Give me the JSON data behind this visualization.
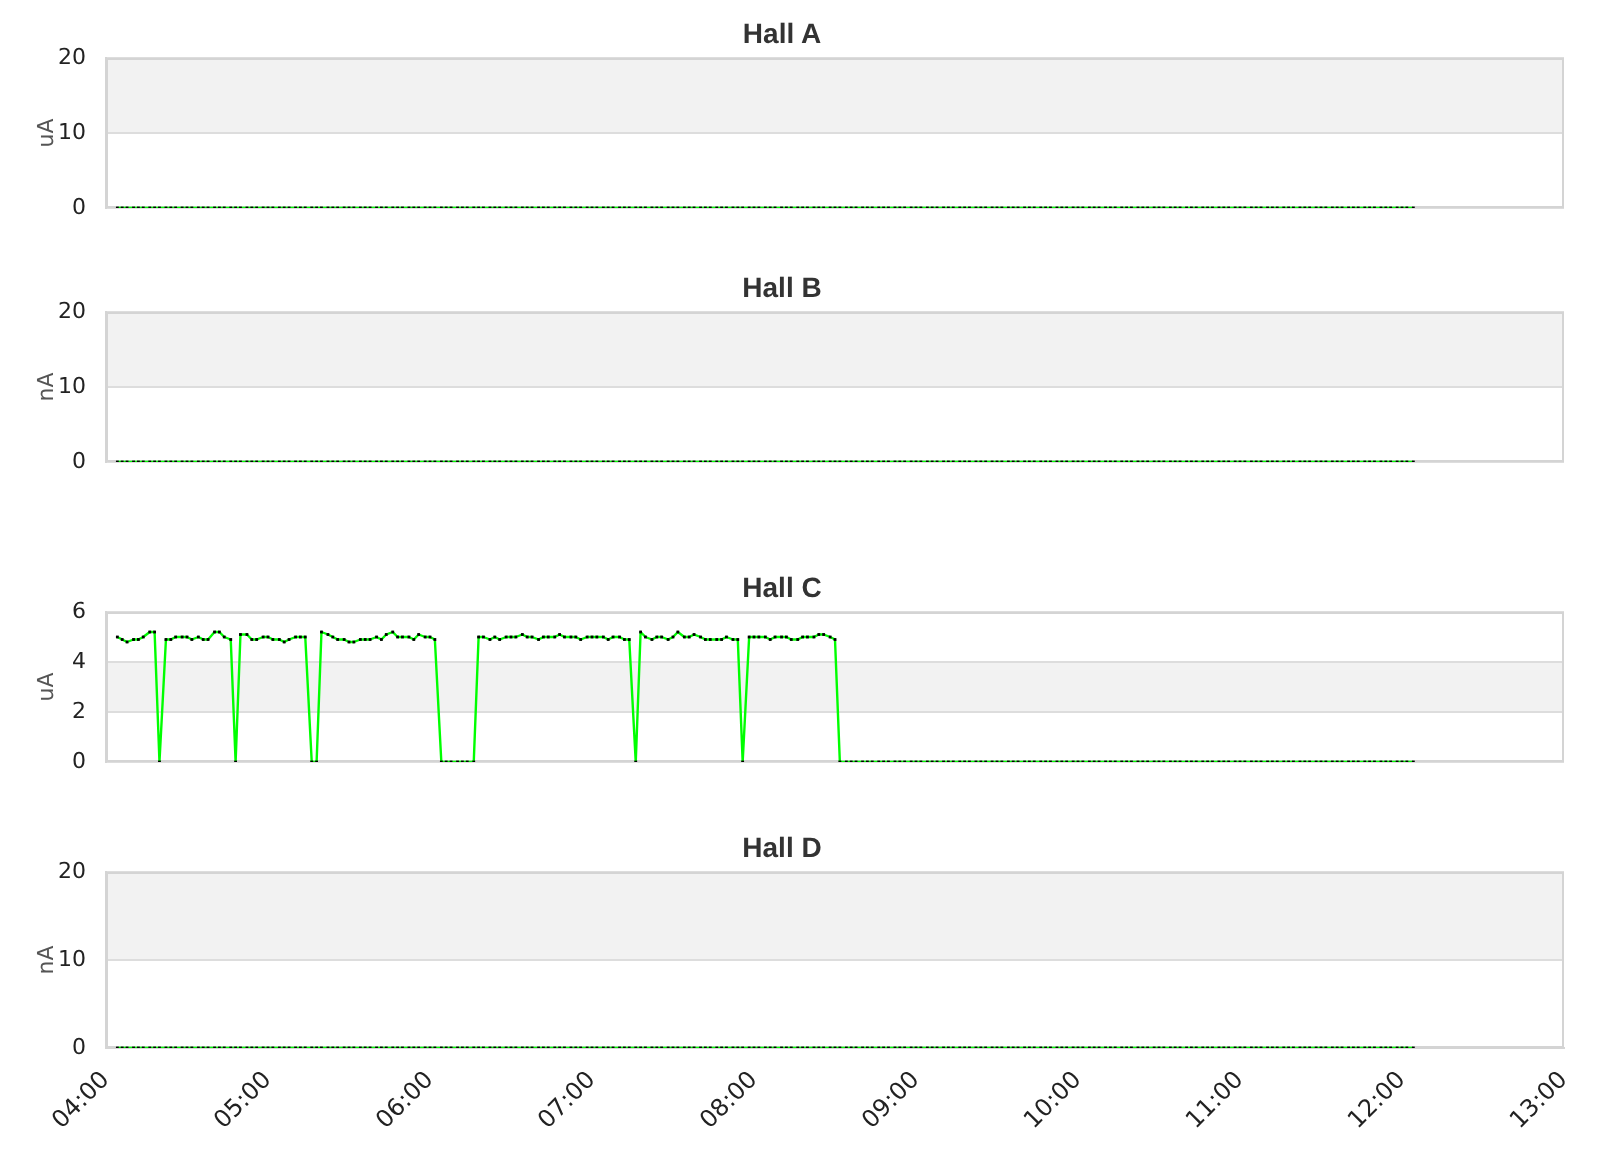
{
  "chart_data": [
    {
      "type": "line",
      "title": "Hall A",
      "ylabel": "uA",
      "x": [
        4.07,
        4.1,
        4.13,
        4.17,
        4.2,
        4.23,
        4.27,
        4.3,
        4.33,
        4.37,
        4.4,
        4.43,
        4.47,
        4.5,
        4.53,
        4.57,
        4.6,
        4.63,
        4.67,
        4.7,
        4.73,
        4.77,
        4.8,
        4.83,
        4.87,
        4.9,
        4.93,
        4.97,
        5,
        5.03,
        5.07,
        5.1,
        5.13,
        5.17,
        5.2,
        5.23,
        5.27,
        5.3,
        5.33,
        5.37,
        5.4,
        5.43,
        5.47,
        5.5,
        5.53,
        5.57,
        5.6,
        5.63,
        5.67,
        5.7,
        5.73,
        5.77,
        5.8,
        5.83,
        5.87,
        5.9,
        5.93,
        5.97,
        6,
        6.03,
        6.07,
        6.1,
        6.13,
        6.17,
        6.2,
        6.23,
        6.27,
        6.3,
        6.33,
        6.37,
        6.4,
        6.43,
        6.47,
        6.5,
        6.53,
        6.57,
        6.6,
        6.63,
        6.67,
        6.7,
        6.73,
        6.77,
        6.8,
        6.83,
        6.87,
        6.9,
        6.93,
        6.97,
        7,
        7.03,
        7.07,
        7.1,
        7.13,
        7.17,
        7.2,
        7.23,
        7.27,
        7.3,
        7.33,
        7.37,
        7.4,
        7.43,
        7.47,
        7.5,
        7.53,
        7.57,
        7.6,
        7.63,
        7.67,
        7.7,
        7.73,
        7.77,
        7.8,
        7.83,
        7.87,
        7.9,
        7.93,
        7.97,
        8,
        8.03,
        8.07,
        8.1,
        8.13,
        8.17,
        8.2,
        8.23,
        8.27,
        8.3,
        8.33,
        8.37,
        8.4,
        8.43,
        8.47,
        8.5,
        8.53,
        8.57,
        8.6,
        8.63,
        8.67,
        8.7,
        8.73,
        8.77,
        8.8,
        8.83,
        8.87,
        8.9,
        8.93,
        8.97,
        9,
        9.03,
        9.07,
        9.1,
        9.13,
        9.17,
        9.2,
        9.23,
        9.27,
        9.3,
        9.33,
        9.37,
        9.4,
        9.43,
        9.47,
        9.5,
        9.53,
        9.57,
        9.6,
        9.63,
        9.67,
        9.7,
        9.73,
        9.77,
        9.8,
        9.83,
        9.87,
        9.9,
        9.93,
        9.97,
        10,
        10.03,
        10.07,
        10.1,
        10.13,
        10.17,
        10.2,
        10.23,
        10.27,
        10.3,
        10.33,
        10.37,
        10.4,
        10.43,
        10.47,
        10.5,
        10.53,
        10.57,
        10.6,
        10.63,
        10.67,
        10.7,
        10.73,
        10.77,
        10.8,
        10.83,
        10.87,
        10.9,
        10.93,
        10.97,
        11,
        11.03,
        11.07,
        11.1,
        11.13,
        11.17,
        11.2,
        11.23,
        11.27,
        11.3,
        11.33,
        11.37,
        11.4,
        11.43,
        11.47,
        11.5,
        11.53,
        11.57,
        11.6,
        11.63,
        11.67,
        11.7,
        11.73,
        11.77,
        11.8,
        11.83,
        11.87,
        11.9,
        11.93,
        11.97,
        12,
        12.03,
        12.07
      ],
      "series": [
        {
          "color": "#00ff00",
          "values": [
            0,
            0,
            0,
            0,
            0,
            0,
            0,
            0,
            0,
            0,
            0,
            0,
            0,
            0,
            0,
            0,
            0,
            0,
            0,
            0,
            0,
            0,
            0,
            0,
            0,
            0,
            0,
            0,
            0,
            0,
            0,
            0,
            0,
            0,
            0,
            0,
            0,
            0,
            0,
            0,
            0,
            0,
            0,
            0,
            0,
            0,
            0,
            0,
            0,
            0,
            0,
            0,
            0,
            0,
            0,
            0,
            0,
            0,
            0,
            0,
            0,
            0,
            0,
            0,
            0,
            0,
            0,
            0,
            0,
            0,
            0,
            0,
            0,
            0,
            0,
            0,
            0,
            0,
            0,
            0,
            0,
            0,
            0,
            0,
            0,
            0,
            0,
            0,
            0,
            0,
            0,
            0,
            0,
            0,
            0,
            0,
            0,
            0,
            0,
            0,
            0,
            0,
            0,
            0,
            0,
            0,
            0,
            0,
            0,
            0,
            0,
            0,
            0,
            0,
            0,
            0,
            0,
            0,
            0,
            0,
            0,
            0,
            0,
            0,
            0,
            0,
            0,
            0,
            0,
            0,
            0,
            0,
            0,
            0,
            0,
            0,
            0,
            0,
            0,
            0,
            0,
            0,
            0,
            0,
            0,
            0,
            0,
            0,
            0,
            0,
            0,
            0,
            0,
            0,
            0,
            0,
            0,
            0,
            0,
            0,
            0,
            0,
            0,
            0,
            0,
            0,
            0,
            0,
            0,
            0,
            0,
            0,
            0,
            0,
            0,
            0,
            0,
            0,
            0,
            0,
            0,
            0,
            0,
            0,
            0,
            0,
            0,
            0,
            0,
            0,
            0,
            0,
            0,
            0,
            0,
            0,
            0,
            0,
            0,
            0,
            0,
            0,
            0,
            0,
            0,
            0,
            0,
            0,
            0,
            0,
            0,
            0,
            0,
            0,
            0,
            0,
            0,
            0,
            0,
            0,
            0,
            0,
            0,
            0,
            0,
            0,
            0,
            0,
            0,
            0,
            0,
            0,
            0,
            0,
            0,
            0,
            0,
            0,
            0,
            0,
            0
          ]
        }
      ],
      "xlim": [
        4,
        13
      ],
      "ylim": [
        0,
        20
      ],
      "yticks": [
        0,
        10,
        20
      ],
      "grid": "y",
      "marker": "square",
      "bands": [
        {
          "axis": "y",
          "from": 10,
          "to": 20,
          "color": "#f2f2f2"
        }
      ],
      "tick_labels": "y"
    },
    {
      "type": "line",
      "title": "Hall B",
      "ylabel": "nA",
      "x": [
        4.07,
        4.1,
        4.13,
        4.17,
        4.2,
        4.23,
        4.27,
        4.3,
        4.33,
        4.37,
        4.4,
        4.43,
        4.47,
        4.5,
        4.53,
        4.57,
        4.6,
        4.63,
        4.67,
        4.7,
        4.73,
        4.77,
        4.8,
        4.83,
        4.87,
        4.9,
        4.93,
        4.97,
        5,
        5.03,
        5.07,
        5.1,
        5.13,
        5.17,
        5.2,
        5.23,
        5.27,
        5.3,
        5.33,
        5.37,
        5.4,
        5.43,
        5.47,
        5.5,
        5.53,
        5.57,
        5.6,
        5.63,
        5.67,
        5.7,
        5.73,
        5.77,
        5.8,
        5.83,
        5.87,
        5.9,
        5.93,
        5.97,
        6,
        6.03,
        6.07,
        6.1,
        6.13,
        6.17,
        6.2,
        6.23,
        6.27,
        6.3,
        6.33,
        6.37,
        6.4,
        6.43,
        6.47,
        6.5,
        6.53,
        6.57,
        6.6,
        6.63,
        6.67,
        6.7,
        6.73,
        6.77,
        6.8,
        6.83,
        6.87,
        6.9,
        6.93,
        6.97,
        7,
        7.03,
        7.07,
        7.1,
        7.13,
        7.17,
        7.2,
        7.23,
        7.27,
        7.3,
        7.33,
        7.37,
        7.4,
        7.43,
        7.47,
        7.5,
        7.53,
        7.57,
        7.6,
        7.63,
        7.67,
        7.7,
        7.73,
        7.77,
        7.8,
        7.83,
        7.87,
        7.9,
        7.93,
        7.97,
        8,
        8.03,
        8.07,
        8.1,
        8.13,
        8.17,
        8.2,
        8.23,
        8.27,
        8.3,
        8.33,
        8.37,
        8.4,
        8.43,
        8.47,
        8.5,
        8.53,
        8.57,
        8.6,
        8.63,
        8.67,
        8.7,
        8.73,
        8.77,
        8.8,
        8.83,
        8.87,
        8.9,
        8.93,
        8.97,
        9,
        9.03,
        9.07,
        9.1,
        9.13,
        9.17,
        9.2,
        9.23,
        9.27,
        9.3,
        9.33,
        9.37,
        9.4,
        9.43,
        9.47,
        9.5,
        9.53,
        9.57,
        9.6,
        9.63,
        9.67,
        9.7,
        9.73,
        9.77,
        9.8,
        9.83,
        9.87,
        9.9,
        9.93,
        9.97,
        10,
        10.03,
        10.07,
        10.1,
        10.13,
        10.17,
        10.2,
        10.23,
        10.27,
        10.3,
        10.33,
        10.37,
        10.4,
        10.43,
        10.47,
        10.5,
        10.53,
        10.57,
        10.6,
        10.63,
        10.67,
        10.7,
        10.73,
        10.77,
        10.8,
        10.83,
        10.87,
        10.9,
        10.93,
        10.97,
        11,
        11.03,
        11.07,
        11.1,
        11.13,
        11.17,
        11.2,
        11.23,
        11.27,
        11.3,
        11.33,
        11.37,
        11.4,
        11.43,
        11.47,
        11.5,
        11.53,
        11.57,
        11.6,
        11.63,
        11.67,
        11.7,
        11.73,
        11.77,
        11.8,
        11.83,
        11.87,
        11.9,
        11.93,
        11.97,
        12,
        12.03,
        12.07
      ],
      "series": [
        {
          "color": "#00ff00",
          "values": [
            0,
            0,
            0,
            0,
            0,
            0,
            0,
            0,
            0,
            0,
            0,
            0,
            0,
            0,
            0,
            0,
            0,
            0,
            0,
            0,
            0,
            0,
            0,
            0,
            0,
            0,
            0,
            0,
            0,
            0,
            0,
            0,
            0,
            0,
            0,
            0,
            0,
            0,
            0,
            0,
            0,
            0,
            0,
            0,
            0,
            0,
            0,
            0,
            0,
            0,
            0,
            0,
            0,
            0,
            0,
            0,
            0,
            0,
            0,
            0,
            0,
            0,
            0,
            0,
            0,
            0,
            0,
            0,
            0,
            0,
            0,
            0,
            0,
            0,
            0,
            0,
            0,
            0,
            0,
            0,
            0,
            0,
            0,
            0,
            0,
            0,
            0,
            0,
            0,
            0,
            0,
            0,
            0,
            0,
            0,
            0,
            0,
            0,
            0,
            0,
            0,
            0,
            0,
            0,
            0,
            0,
            0,
            0,
            0,
            0,
            0,
            0,
            0,
            0,
            0,
            0,
            0,
            0,
            0,
            0,
            0,
            0,
            0,
            0,
            0,
            0,
            0,
            0,
            0,
            0,
            0,
            0,
            0,
            0,
            0,
            0,
            0,
            0,
            0,
            0,
            0,
            0,
            0,
            0,
            0,
            0,
            0,
            0,
            0,
            0,
            0,
            0,
            0,
            0,
            0,
            0,
            0,
            0,
            0,
            0,
            0,
            0,
            0,
            0,
            0,
            0,
            0,
            0,
            0,
            0,
            0,
            0,
            0,
            0,
            0,
            0,
            0,
            0,
            0,
            0,
            0,
            0,
            0,
            0,
            0,
            0,
            0,
            0,
            0,
            0,
            0,
            0,
            0,
            0,
            0,
            0,
            0,
            0,
            0,
            0,
            0,
            0,
            0,
            0,
            0,
            0,
            0,
            0,
            0,
            0,
            0,
            0,
            0,
            0,
            0,
            0,
            0,
            0,
            0,
            0,
            0,
            0,
            0,
            0,
            0,
            0,
            0,
            0,
            0,
            0,
            0,
            0,
            0,
            0,
            0,
            0,
            0,
            0,
            0,
            0,
            0
          ]
        }
      ],
      "xlim": [
        4,
        13
      ],
      "ylim": [
        0,
        20
      ],
      "yticks": [
        0,
        10,
        20
      ],
      "grid": "y",
      "marker": "square",
      "bands": [
        {
          "axis": "y",
          "from": 10,
          "to": 20,
          "color": "#f2f2f2"
        }
      ],
      "tick_labels": "y"
    },
    {
      "type": "line",
      "title": "Hall C",
      "ylabel": "uA",
      "x": [
        4.07,
        4.1,
        4.13,
        4.17,
        4.2,
        4.23,
        4.27,
        4.3,
        4.33,
        4.37,
        4.4,
        4.43,
        4.47,
        4.5,
        4.53,
        4.57,
        4.6,
        4.63,
        4.67,
        4.7,
        4.73,
        4.77,
        4.8,
        4.83,
        4.87,
        4.9,
        4.93,
        4.97,
        5,
        5.03,
        5.07,
        5.1,
        5.13,
        5.17,
        5.2,
        5.23,
        5.27,
        5.3,
        5.33,
        5.37,
        5.4,
        5.43,
        5.47,
        5.5,
        5.53,
        5.57,
        5.6,
        5.63,
        5.67,
        5.7,
        5.73,
        5.77,
        5.8,
        5.83,
        5.87,
        5.9,
        5.93,
        5.97,
        6,
        6.03,
        6.07,
        6.1,
        6.13,
        6.17,
        6.2,
        6.23,
        6.27,
        6.3,
        6.33,
        6.37,
        6.4,
        6.43,
        6.47,
        6.5,
        6.53,
        6.57,
        6.6,
        6.63,
        6.67,
        6.7,
        6.73,
        6.77,
        6.8,
        6.83,
        6.87,
        6.9,
        6.93,
        6.97,
        7,
        7.03,
        7.07,
        7.1,
        7.13,
        7.17,
        7.2,
        7.23,
        7.27,
        7.3,
        7.33,
        7.37,
        7.4,
        7.43,
        7.47,
        7.5,
        7.53,
        7.57,
        7.6,
        7.63,
        7.67,
        7.7,
        7.73,
        7.77,
        7.8,
        7.83,
        7.87,
        7.9,
        7.93,
        7.97,
        8,
        8.03,
        8.07,
        8.1,
        8.13,
        8.17,
        8.2,
        8.23,
        8.27,
        8.3,
        8.33,
        8.37,
        8.4,
        8.43,
        8.47,
        8.5,
        8.53,
        8.57,
        8.6,
        8.63,
        8.67,
        8.7,
        8.73,
        8.77,
        8.8,
        8.83,
        8.87,
        8.9,
        8.93,
        8.97,
        9,
        9.03,
        9.07,
        9.1,
        9.13,
        9.17,
        9.2,
        9.23,
        9.27,
        9.3,
        9.33,
        9.37,
        9.4,
        9.43,
        9.47,
        9.5,
        9.53,
        9.57,
        9.6,
        9.63,
        9.67,
        9.7,
        9.73,
        9.77,
        9.8,
        9.83,
        9.87,
        9.9,
        9.93,
        9.97,
        10,
        10.03,
        10.07,
        10.1,
        10.13,
        10.17,
        10.2,
        10.23,
        10.27,
        10.3,
        10.33,
        10.37,
        10.4,
        10.43,
        10.47,
        10.5,
        10.53,
        10.57,
        10.6,
        10.63,
        10.67,
        10.7,
        10.73,
        10.77,
        10.8,
        10.83,
        10.87,
        10.9,
        10.93,
        10.97,
        11,
        11.03,
        11.07,
        11.1,
        11.13,
        11.17,
        11.2,
        11.23,
        11.27,
        11.3,
        11.33,
        11.37,
        11.4,
        11.43,
        11.47,
        11.5,
        11.53,
        11.57,
        11.6,
        11.63,
        11.67,
        11.7,
        11.73,
        11.77,
        11.8,
        11.83,
        11.87,
        11.9,
        11.93,
        11.97,
        12,
        12.03,
        12.07
      ],
      "series": [
        {
          "color": "#00ff00",
          "values": [
            5,
            4.9,
            4.8,
            4.9,
            4.9,
            5,
            5.2,
            5.2,
            0,
            4.9,
            4.9,
            5,
            5,
            5,
            4.9,
            5,
            4.9,
            4.9,
            5.2,
            5.2,
            5,
            4.9,
            0,
            5.1,
            5.1,
            4.9,
            4.9,
            5,
            5,
            4.9,
            4.9,
            4.8,
            4.9,
            5,
            5,
            5,
            0,
            0,
            5.2,
            5.1,
            5,
            4.9,
            4.9,
            4.8,
            4.8,
            4.9,
            4.9,
            4.9,
            5,
            4.9,
            5.1,
            5.2,
            5,
            5,
            5,
            4.9,
            5.1,
            5,
            5,
            4.9,
            0,
            0,
            0,
            0,
            0,
            0,
            0,
            5,
            5,
            4.9,
            5,
            4.9,
            5,
            5,
            5,
            5.1,
            5,
            5,
            4.9,
            5,
            5,
            5,
            5.1,
            5,
            5,
            5,
            4.9,
            5,
            5,
            5,
            5,
            4.9,
            5,
            5,
            4.9,
            4.9,
            0,
            5.2,
            5,
            4.9,
            5,
            5,
            4.9,
            5,
            5.2,
            5,
            5,
            5.1,
            5,
            4.9,
            4.9,
            4.9,
            4.9,
            5,
            4.9,
            4.9,
            0,
            5,
            5,
            5,
            5,
            4.9,
            5,
            5,
            5,
            4.9,
            4.9,
            5,
            5,
            5,
            5.1,
            5.1,
            5,
            4.9,
            0,
            0,
            0,
            0,
            0,
            0,
            0,
            0,
            0,
            0,
            0,
            0,
            0,
            0,
            0,
            0,
            0,
            0,
            0,
            0,
            0,
            0,
            0,
            0,
            0,
            0,
            0,
            0,
            0,
            0,
            0,
            0,
            0,
            0,
            0,
            0,
            0,
            0,
            0,
            0,
            0,
            0,
            0,
            0,
            0,
            0,
            0,
            0,
            0,
            0,
            0,
            0,
            0,
            0,
            0,
            0,
            0,
            0,
            0,
            0,
            0,
            0,
            0,
            0,
            0,
            0,
            0,
            0,
            0,
            0,
            0,
            0,
            0,
            0,
            0,
            0,
            0,
            0,
            0,
            0,
            0,
            0,
            0,
            0,
            0,
            0,
            0,
            0,
            0,
            0,
            0,
            0,
            0,
            0,
            0,
            0,
            0,
            0,
            0,
            0,
            0,
            0,
            0,
            0,
            0,
            0,
            0
          ]
        }
      ],
      "xlim": [
        4,
        13
      ],
      "ylim": [
        0,
        6
      ],
      "yticks": [
        0,
        2,
        4,
        6
      ],
      "grid": "y",
      "marker": "square",
      "bands": [
        {
          "axis": "y",
          "from": 2,
          "to": 4,
          "color": "#f2f2f2"
        }
      ],
      "tick_labels": "y"
    },
    {
      "type": "line",
      "title": "Hall D",
      "ylabel": "nA",
      "x": [
        4.07,
        4.1,
        4.13,
        4.17,
        4.2,
        4.23,
        4.27,
        4.3,
        4.33,
        4.37,
        4.4,
        4.43,
        4.47,
        4.5,
        4.53,
        4.57,
        4.6,
        4.63,
        4.67,
        4.7,
        4.73,
        4.77,
        4.8,
        4.83,
        4.87,
        4.9,
        4.93,
        4.97,
        5,
        5.03,
        5.07,
        5.1,
        5.13,
        5.17,
        5.2,
        5.23,
        5.27,
        5.3,
        5.33,
        5.37,
        5.4,
        5.43,
        5.47,
        5.5,
        5.53,
        5.57,
        5.6,
        5.63,
        5.67,
        5.7,
        5.73,
        5.77,
        5.8,
        5.83,
        5.87,
        5.9,
        5.93,
        5.97,
        6,
        6.03,
        6.07,
        6.1,
        6.13,
        6.17,
        6.2,
        6.23,
        6.27,
        6.3,
        6.33,
        6.37,
        6.4,
        6.43,
        6.47,
        6.5,
        6.53,
        6.57,
        6.6,
        6.63,
        6.67,
        6.7,
        6.73,
        6.77,
        6.8,
        6.83,
        6.87,
        6.9,
        6.93,
        6.97,
        7,
        7.03,
        7.07,
        7.1,
        7.13,
        7.17,
        7.2,
        7.23,
        7.27,
        7.3,
        7.33,
        7.37,
        7.4,
        7.43,
        7.47,
        7.5,
        7.53,
        7.57,
        7.6,
        7.63,
        7.67,
        7.7,
        7.73,
        7.77,
        7.8,
        7.83,
        7.87,
        7.9,
        7.93,
        7.97,
        8,
        8.03,
        8.07,
        8.1,
        8.13,
        8.17,
        8.2,
        8.23,
        8.27,
        8.3,
        8.33,
        8.37,
        8.4,
        8.43,
        8.47,
        8.5,
        8.53,
        8.57,
        8.6,
        8.63,
        8.67,
        8.7,
        8.73,
        8.77,
        8.8,
        8.83,
        8.87,
        8.9,
        8.93,
        8.97,
        9,
        9.03,
        9.07,
        9.1,
        9.13,
        9.17,
        9.2,
        9.23,
        9.27,
        9.3,
        9.33,
        9.37,
        9.4,
        9.43,
        9.47,
        9.5,
        9.53,
        9.57,
        9.6,
        9.63,
        9.67,
        9.7,
        9.73,
        9.77,
        9.8,
        9.83,
        9.87,
        9.9,
        9.93,
        9.97,
        10,
        10.03,
        10.07,
        10.1,
        10.13,
        10.17,
        10.2,
        10.23,
        10.27,
        10.3,
        10.33,
        10.37,
        10.4,
        10.43,
        10.47,
        10.5,
        10.53,
        10.57,
        10.6,
        10.63,
        10.67,
        10.7,
        10.73,
        10.77,
        10.8,
        10.83,
        10.87,
        10.9,
        10.93,
        10.97,
        11,
        11.03,
        11.07,
        11.1,
        11.13,
        11.17,
        11.2,
        11.23,
        11.27,
        11.3,
        11.33,
        11.37,
        11.4,
        11.43,
        11.47,
        11.5,
        11.53,
        11.57,
        11.6,
        11.63,
        11.67,
        11.7,
        11.73,
        11.77,
        11.8,
        11.83,
        11.87,
        11.9,
        11.93,
        11.97,
        12,
        12.03,
        12.07
      ],
      "series": [
        {
          "color": "#00ff00",
          "values": [
            0,
            0,
            0,
            0,
            0,
            0,
            0,
            0,
            0,
            0,
            0,
            0,
            0,
            0,
            0,
            0,
            0,
            0,
            0,
            0,
            0,
            0,
            0,
            0,
            0,
            0,
            0,
            0,
            0,
            0,
            0,
            0,
            0,
            0,
            0,
            0,
            0,
            0,
            0,
            0,
            0,
            0,
            0,
            0,
            0,
            0,
            0,
            0,
            0,
            0,
            0,
            0,
            0,
            0,
            0,
            0,
            0,
            0,
            0,
            0,
            0,
            0,
            0,
            0,
            0,
            0,
            0,
            0,
            0,
            0,
            0,
            0,
            0,
            0,
            0,
            0,
            0,
            0,
            0,
            0,
            0,
            0,
            0,
            0,
            0,
            0,
            0,
            0,
            0,
            0,
            0,
            0,
            0,
            0,
            0,
            0,
            0,
            0,
            0,
            0,
            0,
            0,
            0,
            0,
            0,
            0,
            0,
            0,
            0,
            0,
            0,
            0,
            0,
            0,
            0,
            0,
            0,
            0,
            0,
            0,
            0,
            0,
            0,
            0,
            0,
            0,
            0,
            0,
            0,
            0,
            0,
            0,
            0,
            0,
            0,
            0,
            0,
            0,
            0,
            0,
            0,
            0,
            0,
            0,
            0,
            0,
            0,
            0,
            0,
            0,
            0,
            0,
            0,
            0,
            0,
            0,
            0,
            0,
            0,
            0,
            0,
            0,
            0,
            0,
            0,
            0,
            0,
            0,
            0,
            0,
            0,
            0,
            0,
            0,
            0,
            0,
            0,
            0,
            0,
            0,
            0,
            0,
            0,
            0,
            0,
            0,
            0,
            0,
            0,
            0,
            0,
            0,
            0,
            0,
            0,
            0,
            0,
            0,
            0,
            0,
            0,
            0,
            0,
            0,
            0,
            0,
            0,
            0,
            0,
            0,
            0,
            0,
            0,
            0,
            0,
            0,
            0,
            0,
            0,
            0,
            0,
            0,
            0,
            0,
            0,
            0,
            0,
            0,
            0,
            0,
            0,
            0,
            0,
            0,
            0,
            0,
            0,
            0,
            0,
            0,
            0
          ]
        }
      ],
      "xlim": [
        4,
        13
      ],
      "xticks": [
        {
          "value": 4,
          "label": "04:00"
        },
        {
          "value": 5,
          "label": "05:00"
        },
        {
          "value": 6,
          "label": "06:00"
        },
        {
          "value": 7,
          "label": "07:00"
        },
        {
          "value": 8,
          "label": "08:00"
        },
        {
          "value": 9,
          "label": "09:00"
        },
        {
          "value": 10,
          "label": "10:00"
        },
        {
          "value": 11,
          "label": "11:00"
        },
        {
          "value": 12,
          "label": "12:00"
        },
        {
          "value": 13,
          "label": "13:00"
        }
      ],
      "ylim": [
        0,
        20
      ],
      "yticks": [
        0,
        10,
        20
      ],
      "grid": "y",
      "marker": "square",
      "bands": [
        {
          "axis": "y",
          "from": 10,
          "to": 20,
          "color": "#f2f2f2"
        }
      ]
    }
  ]
}
